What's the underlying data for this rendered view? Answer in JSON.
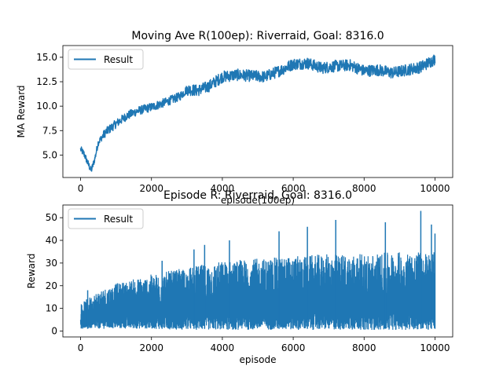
{
  "chart_data": [
    {
      "type": "line",
      "title": "Moving Ave R(100ep): Riverraid, Goal: 8316.0",
      "xlabel": "episode(100ep)",
      "ylabel": "MA Reward",
      "xlim": [
        -500,
        10500
      ],
      "ylim": [
        2.7,
        16.2
      ],
      "xticks": [
        0,
        2000,
        4000,
        6000,
        8000,
        10000
      ],
      "yticks": [
        5.0,
        7.5,
        10.0,
        12.5,
        15.0
      ],
      "ytick_labels": [
        "5.0",
        "7.5",
        "10.0",
        "12.5",
        "15.0"
      ],
      "grid": false,
      "legend_position": "upper-left",
      "series": [
        {
          "name": "Result",
          "color": "#1f77b4",
          "x": [
            0,
            100,
            200,
            300,
            400,
            500,
            700,
            1000,
            1300,
            1600,
            2000,
            2400,
            2800,
            3000,
            3300,
            3600,
            4000,
            4400,
            4800,
            5200,
            5600,
            6000,
            6400,
            6800,
            7200,
            7600,
            8000,
            8400,
            8800,
            9200,
            9600,
            10000
          ],
          "y": [
            5.6,
            5.1,
            4.2,
            3.4,
            4.6,
            6.3,
            7.3,
            8.2,
            9.0,
            9.5,
            9.9,
            10.4,
            11.0,
            11.7,
            11.6,
            12.0,
            13.0,
            13.2,
            13.1,
            13.0,
            13.6,
            14.3,
            14.4,
            13.9,
            14.1,
            14.2,
            13.6,
            13.7,
            13.4,
            13.7,
            14.0,
            14.8
          ]
        }
      ]
    },
    {
      "type": "line",
      "title": "Episode R: Riverraid, Goal: 8316.0",
      "xlabel": "episode",
      "ylabel": "Reward",
      "xlim": [
        -500,
        10500
      ],
      "ylim": [
        -2.6,
        55.6
      ],
      "xticks": [
        0,
        2000,
        4000,
        6000,
        8000,
        10000
      ],
      "yticks": [
        0,
        10,
        20,
        30,
        40,
        50
      ],
      "grid": false,
      "legend_position": "upper-left",
      "series": [
        {
          "name": "Result",
          "color": "#1f77b4",
          "envelope": {
            "x": [
              0,
              500,
              1000,
              2000,
              3000,
              4000,
              5000,
              6000,
              7000,
              8000,
              9000,
              10000
            ],
            "low": [
              1,
              1,
              1,
              1,
              0.5,
              0.5,
              0.5,
              0.5,
              0.5,
              0.5,
              0.5,
              0.5
            ],
            "high": [
              12,
              18,
              21,
              25,
              28,
              31,
              32,
              33,
              34,
              34,
              35,
              35
            ]
          },
          "spikes": [
            {
              "x": 200,
              "y": 18
            },
            {
              "x": 2300,
              "y": 31
            },
            {
              "x": 3200,
              "y": 36
            },
            {
              "x": 3500,
              "y": 38
            },
            {
              "x": 4200,
              "y": 40
            },
            {
              "x": 5600,
              "y": 44
            },
            {
              "x": 6400,
              "y": 46
            },
            {
              "x": 7200,
              "y": 49
            },
            {
              "x": 8600,
              "y": 48
            },
            {
              "x": 9600,
              "y": 53
            },
            {
              "x": 9900,
              "y": 47
            },
            {
              "x": 10000,
              "y": 43
            }
          ]
        }
      ]
    }
  ]
}
